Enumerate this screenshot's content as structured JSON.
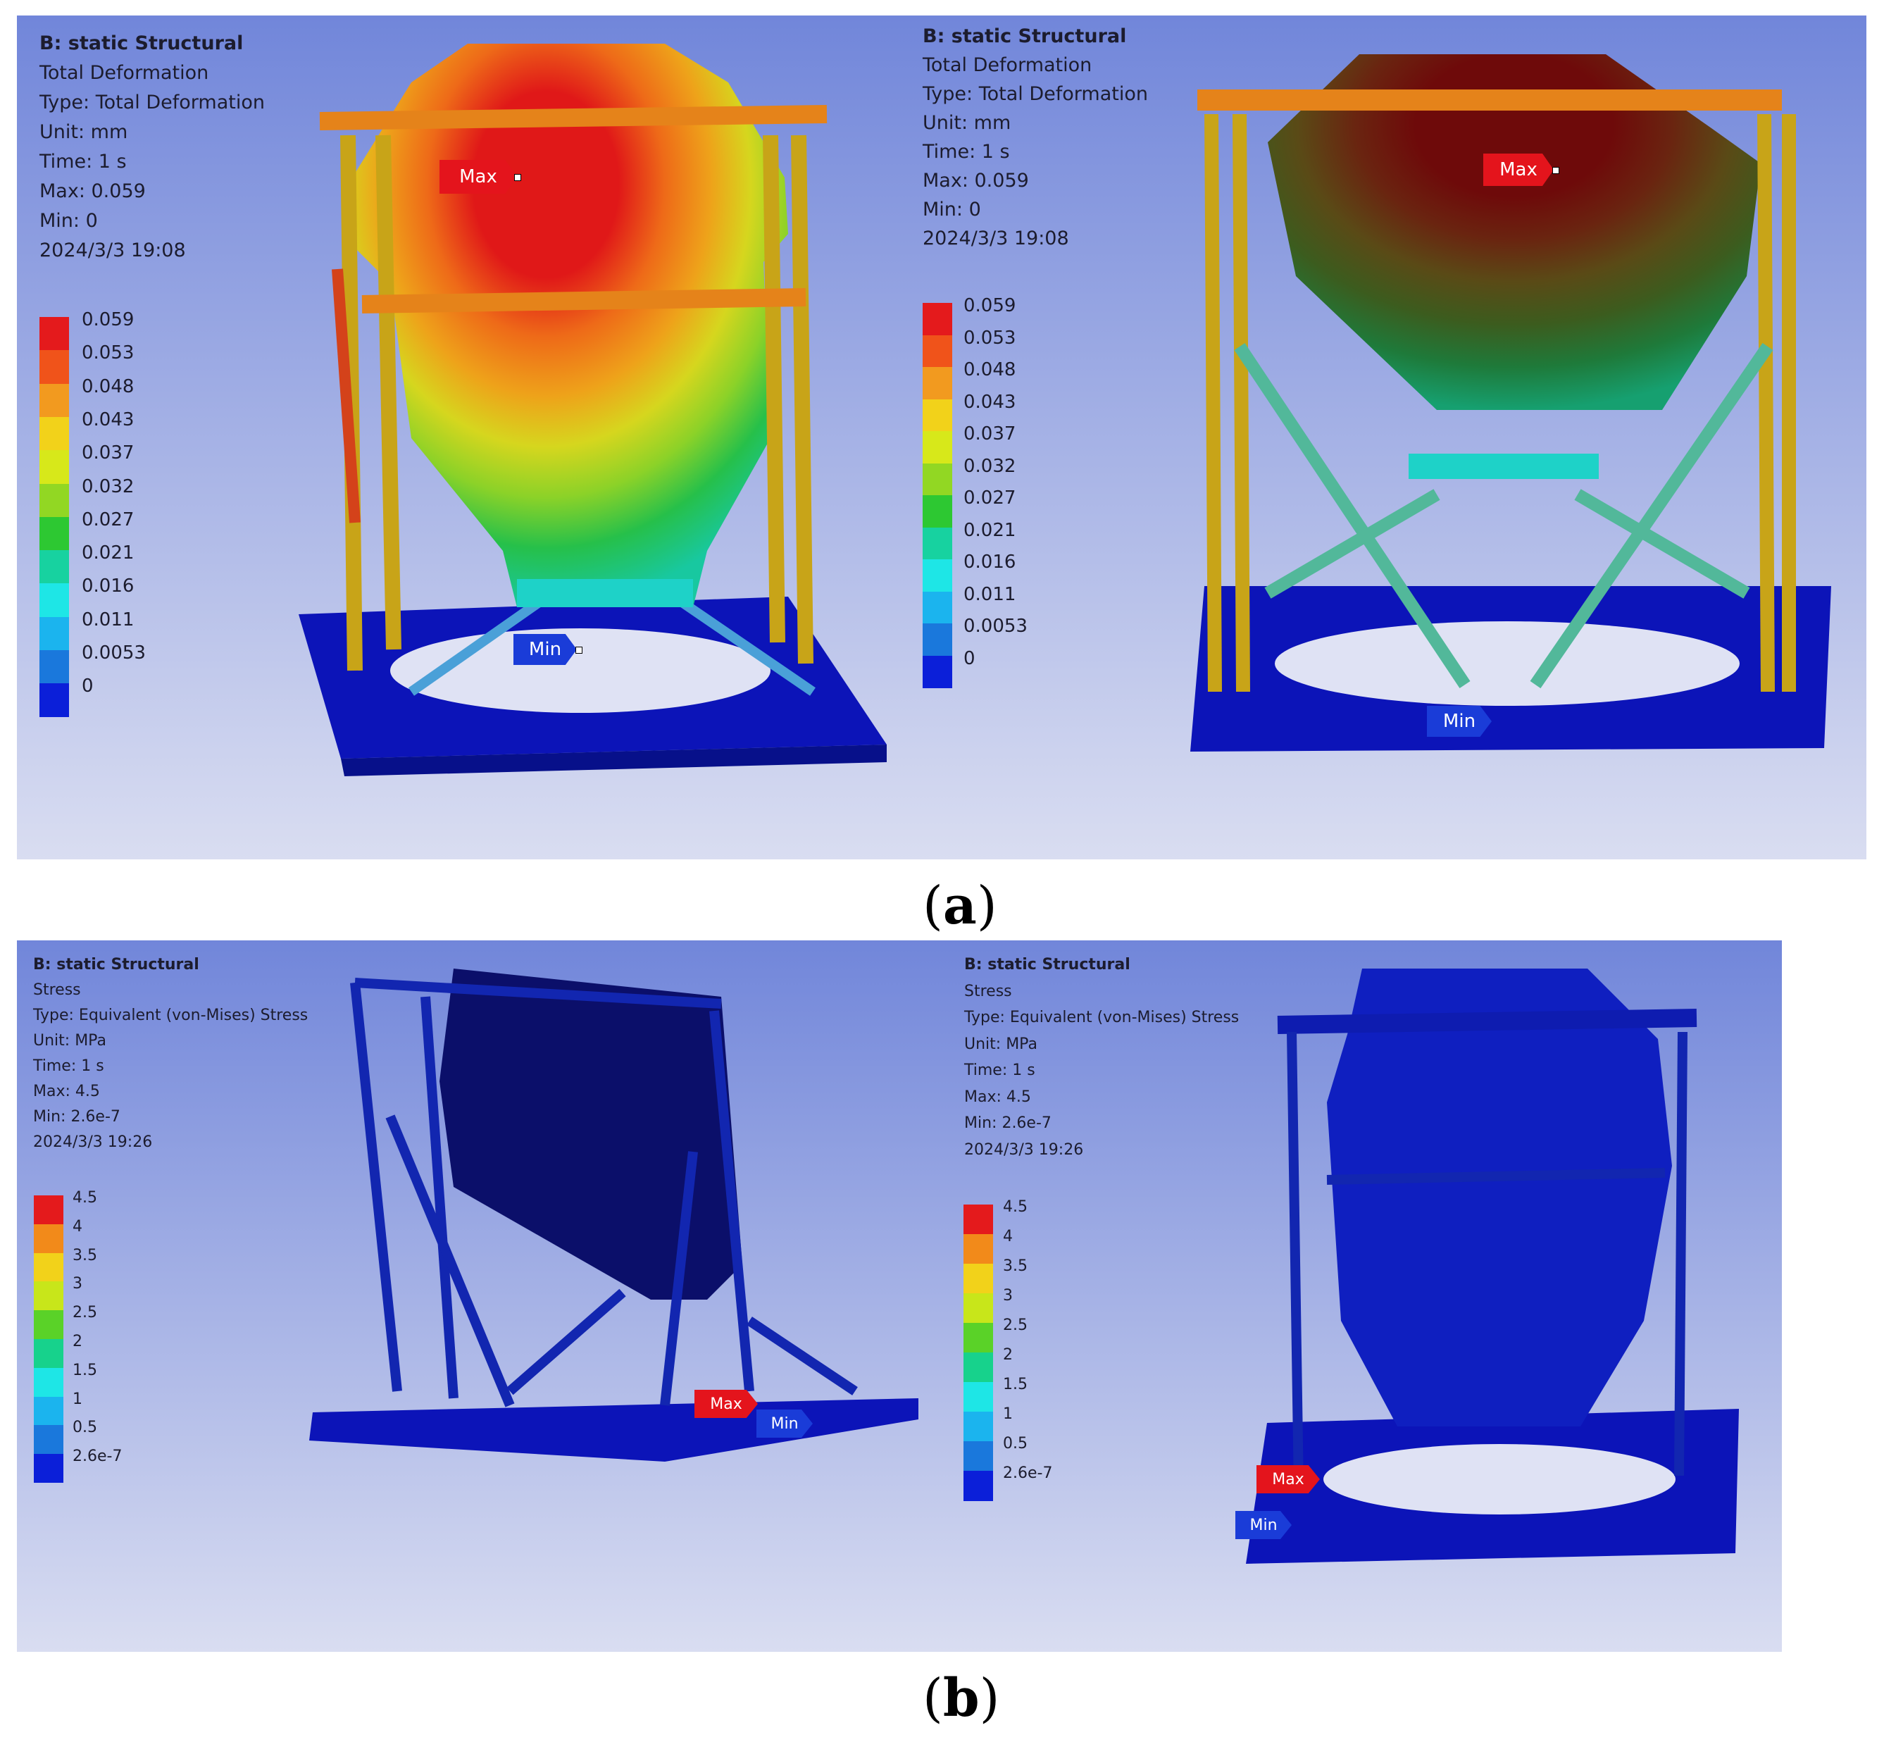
{
  "figure_a": {
    "caption_label": "a",
    "left": {
      "info": [
        "B: static Structural",
        "Total Deformation",
        "Type: Total Deformation",
        "Unit: mm",
        "Time: 1 s",
        "Max: 0.059",
        "Min: 0",
        "2024/3/3 19:08"
      ],
      "legend": [
        "0.059",
        "0.053",
        "0.048",
        "0.043",
        "0.037",
        "0.032",
        "0.027",
        "0.021",
        "0.016",
        "0.011",
        "0.0053",
        "0"
      ],
      "max_tag": "Max",
      "min_tag": "Min"
    },
    "right": {
      "info": [
        "B: static Structural",
        "Total Deformation",
        "Type: Total Deformation",
        "Unit: mm",
        "Time: 1 s",
        "Max: 0.059",
        "Min: 0",
        "2024/3/3 19:08"
      ],
      "legend": [
        "0.059",
        "0.053",
        "0.048",
        "0.043",
        "0.037",
        "0.032",
        "0.027",
        "0.021",
        "0.016",
        "0.011",
        "0.0053",
        "0"
      ],
      "max_tag": "Max",
      "min_tag": "Min"
    }
  },
  "figure_b": {
    "caption_label": "b",
    "left": {
      "info": [
        "B: static Structural",
        "Stress",
        "Type: Equivalent (von-Mises) Stress",
        "Unit: MPa",
        "Time: 1 s",
        "Max: 4.5",
        "Min: 2.6e-7",
        "2024/3/3 19:26"
      ],
      "legend": [
        "4.5",
        "4",
        "3.5",
        "3",
        "2.5",
        "2",
        "1.5",
        "1",
        "0.5",
        "2.6e-7"
      ],
      "max_tag": "Max",
      "min_tag": "Min"
    },
    "right": {
      "info": [
        "B: static Structural",
        "Stress",
        "Type: Equivalent (von-Mises) Stress",
        "Unit: MPa",
        "Time: 1 s",
        "Max: 4.5",
        "Min: 2.6e-7",
        "2024/3/3 19:26"
      ],
      "legend": [
        "4.5",
        "4",
        "3.5",
        "3",
        "2.5",
        "2",
        "1.5",
        "1",
        "0.5",
        "2.6e-7"
      ],
      "max_tag": "Max",
      "min_tag": "Min"
    }
  },
  "colors": {
    "scale_12": [
      "#e41a1c",
      "#f0531a",
      "#f29a1f",
      "#f2d21a",
      "#d7e81a",
      "#92d723",
      "#2dc832",
      "#17d2a0",
      "#1ee6e6",
      "#1bb4ee",
      "#1a78dc",
      "#0b1fd9"
    ],
    "scale_10": [
      "#e41a1c",
      "#f28a1a",
      "#f2d21a",
      "#c8e61a",
      "#5ad228",
      "#17d28c",
      "#1ee6e6",
      "#1bb4ee",
      "#1a78dc",
      "#0b1fd9"
    ],
    "panel_bg_top": "#7186da",
    "panel_bg_bottom": "#d9ddf1",
    "max_tag": "#e4141c",
    "min_tag": "#1a3cd8"
  }
}
